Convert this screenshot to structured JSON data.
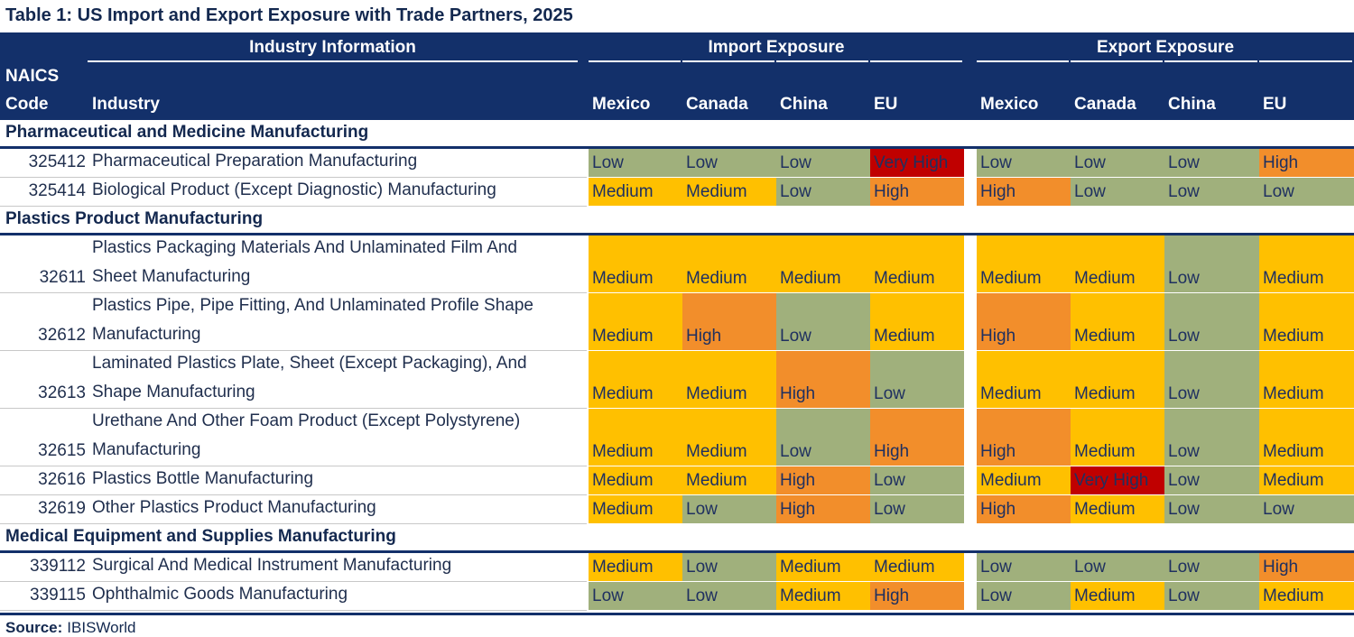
{
  "title": "Table 1: US Import and Export Exposure with Trade Partners, 2025",
  "header": {
    "groups": [
      "Industry Information",
      "Import Exposure",
      "Export Exposure"
    ],
    "code_label": [
      "NAICS",
      "Code"
    ],
    "industry_label": "Industry",
    "import_columns": [
      "Mexico",
      "Canada",
      "China",
      "EU"
    ],
    "export_columns": [
      "Mexico",
      "Canada",
      "China",
      "EU"
    ]
  },
  "level_colors": {
    "Low": "#a0b07c",
    "Medium": "#ffc000",
    "High": "#f28e2b",
    "Very High": "#c00000"
  },
  "sections": [
    {
      "title": "Pharmaceutical and Medicine Manufacturing",
      "rows": [
        {
          "code": "325412",
          "industry": [
            "Pharmaceutical Preparation Manufacturing"
          ],
          "import": [
            "Low",
            "Low",
            "Low",
            "Very High"
          ],
          "export": [
            "Low",
            "Low",
            "Low",
            "High"
          ]
        },
        {
          "code": "325414",
          "industry": [
            "Biological Product (Except Diagnostic) Manufacturing"
          ],
          "import": [
            "Medium",
            "Medium",
            "Low",
            "High"
          ],
          "export": [
            "High",
            "Low",
            "Low",
            "Low"
          ]
        }
      ]
    },
    {
      "title": "Plastics Product Manufacturing",
      "rows": [
        {
          "code": "32611",
          "industry": [
            "Plastics Packaging Materials And Unlaminated Film And",
            "Sheet Manufacturing"
          ],
          "import": [
            "Medium",
            "Medium",
            "Medium",
            "Medium"
          ],
          "export": [
            "Medium",
            "Medium",
            "Low",
            "Medium"
          ]
        },
        {
          "code": "32612",
          "industry": [
            "Plastics Pipe, Pipe Fitting, And Unlaminated Profile Shape",
            "Manufacturing"
          ],
          "import": [
            "Medium",
            "High",
            "Low",
            "Medium"
          ],
          "export": [
            "High",
            "Medium",
            "Low",
            "Medium"
          ]
        },
        {
          "code": "32613",
          "industry": [
            "Laminated Plastics Plate, Sheet (Except Packaging), And",
            "Shape Manufacturing"
          ],
          "import": [
            "Medium",
            "Medium",
            "High",
            "Low"
          ],
          "export": [
            "Medium",
            "Medium",
            "Low",
            "Medium"
          ]
        },
        {
          "code": "32615",
          "industry": [
            "Urethane And Other Foam Product (Except Polystyrene)",
            "Manufacturing"
          ],
          "import": [
            "Medium",
            "Medium",
            "Low",
            "High"
          ],
          "export": [
            "High",
            "Medium",
            "Low",
            "Medium"
          ]
        },
        {
          "code": "32616",
          "industry": [
            "Plastics Bottle Manufacturing"
          ],
          "import": [
            "Medium",
            "Medium",
            "High",
            "Low"
          ],
          "export": [
            "Medium",
            "Very High",
            "Low",
            "Medium"
          ]
        },
        {
          "code": "32619",
          "industry": [
            "Other Plastics Product Manufacturing"
          ],
          "import": [
            "Medium",
            "Low",
            "High",
            "Low"
          ],
          "export": [
            "High",
            "Medium",
            "Low",
            "Low"
          ]
        }
      ]
    },
    {
      "title": "Medical Equipment and Supplies Manufacturing",
      "rows": [
        {
          "code": "339112",
          "industry": [
            "Surgical And Medical Instrument Manufacturing"
          ],
          "import": [
            "Medium",
            "Low",
            "Medium",
            "Medium"
          ],
          "export": [
            "Low",
            "Low",
            "Low",
            "High"
          ]
        },
        {
          "code": "339115",
          "industry": [
            "Ophthalmic Goods Manufacturing"
          ],
          "import": [
            "Low",
            "Low",
            "Medium",
            "High"
          ],
          "export": [
            "Low",
            "Medium",
            "Low",
            "Medium"
          ]
        }
      ]
    }
  ],
  "source": {
    "label": "Source:",
    "text": "IBISWorld"
  }
}
